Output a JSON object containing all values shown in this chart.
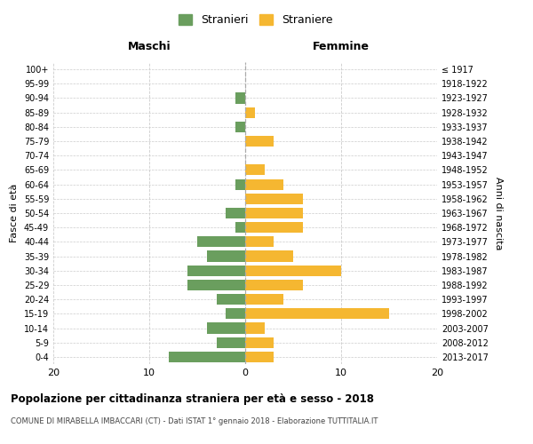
{
  "age_groups": [
    "0-4",
    "5-9",
    "10-14",
    "15-19",
    "20-24",
    "25-29",
    "30-34",
    "35-39",
    "40-44",
    "45-49",
    "50-54",
    "55-59",
    "60-64",
    "65-69",
    "70-74",
    "75-79",
    "80-84",
    "85-89",
    "90-94",
    "95-99",
    "100+"
  ],
  "birth_years": [
    "2013-2017",
    "2008-2012",
    "2003-2007",
    "1998-2002",
    "1993-1997",
    "1988-1992",
    "1983-1987",
    "1978-1982",
    "1973-1977",
    "1968-1972",
    "1963-1967",
    "1958-1962",
    "1953-1957",
    "1948-1952",
    "1943-1947",
    "1938-1942",
    "1933-1937",
    "1928-1932",
    "1923-1927",
    "1918-1922",
    "≤ 1917"
  ],
  "maschi": [
    8,
    3,
    4,
    2,
    3,
    6,
    6,
    4,
    5,
    1,
    2,
    0,
    1,
    0,
    0,
    0,
    1,
    0,
    1,
    0,
    0
  ],
  "femmine": [
    3,
    3,
    2,
    15,
    4,
    6,
    10,
    5,
    3,
    6,
    6,
    6,
    4,
    2,
    0,
    3,
    0,
    1,
    0,
    0,
    0
  ],
  "color_maschi": "#6a9e5e",
  "color_femmine": "#f5b731",
  "background_color": "#ffffff",
  "grid_color": "#cccccc",
  "title": "Popolazione per cittadinanza straniera per età e sesso - 2018",
  "subtitle": "COMUNE DI MIRABELLA IMBACCARI (CT) - Dati ISTAT 1° gennaio 2018 - Elaborazione TUTTITALIA.IT",
  "xlabel_left": "Maschi",
  "xlabel_right": "Femmine",
  "ylabel_left": "Fasce di età",
  "ylabel_right": "Anni di nascita",
  "legend_stranieri": "Stranieri",
  "legend_straniere": "Straniere",
  "xlim": 20,
  "xticks": [
    -20,
    -10,
    0,
    10,
    20
  ],
  "xtick_labels": [
    "20",
    "10",
    "0",
    "10",
    "20"
  ]
}
